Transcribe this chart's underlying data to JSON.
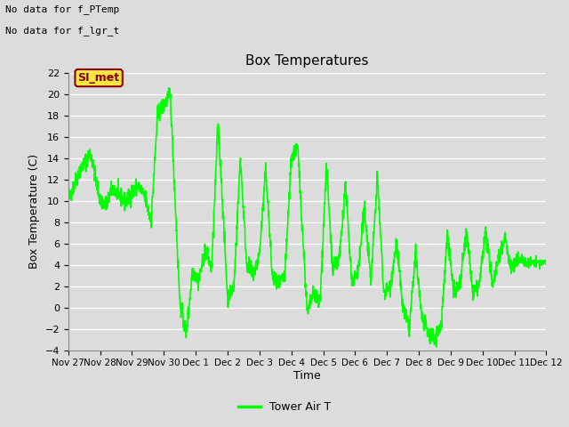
{
  "title": "Box Temperatures",
  "xlabel": "Time",
  "ylabel": "Box Temperature (C)",
  "ylim": [
    -4,
    22
  ],
  "yticks": [
    -4,
    -2,
    0,
    2,
    4,
    6,
    8,
    10,
    12,
    14,
    16,
    18,
    20,
    22
  ],
  "line_color": "#00FF00",
  "line_width": 1.2,
  "bg_color": "#DCDCDC",
  "plot_bg_color": "#DCDCDC",
  "grid_color": "#FFFFFF",
  "annotation_text1": "No data for f_PTemp",
  "annotation_text2": "No data for f_lgr_t",
  "legend_box_text": "SI_met",
  "legend_box_facecolor": "#F5E642",
  "legend_box_edgecolor": "#8B0000",
  "legend_box_textcolor": "#8B0000",
  "legend_label": "Tower Air T",
  "x_tick_labels": [
    "Nov 27",
    "Nov 28",
    "Nov 29",
    "Nov 30",
    "Dec 1",
    "Dec 2",
    "Dec 3",
    "Dec 4",
    "Dec 5",
    "Dec 6",
    "Dec 7",
    "Dec 8",
    "Dec 9",
    "Dec 10",
    "Dec 11",
    "Dec 12"
  ]
}
